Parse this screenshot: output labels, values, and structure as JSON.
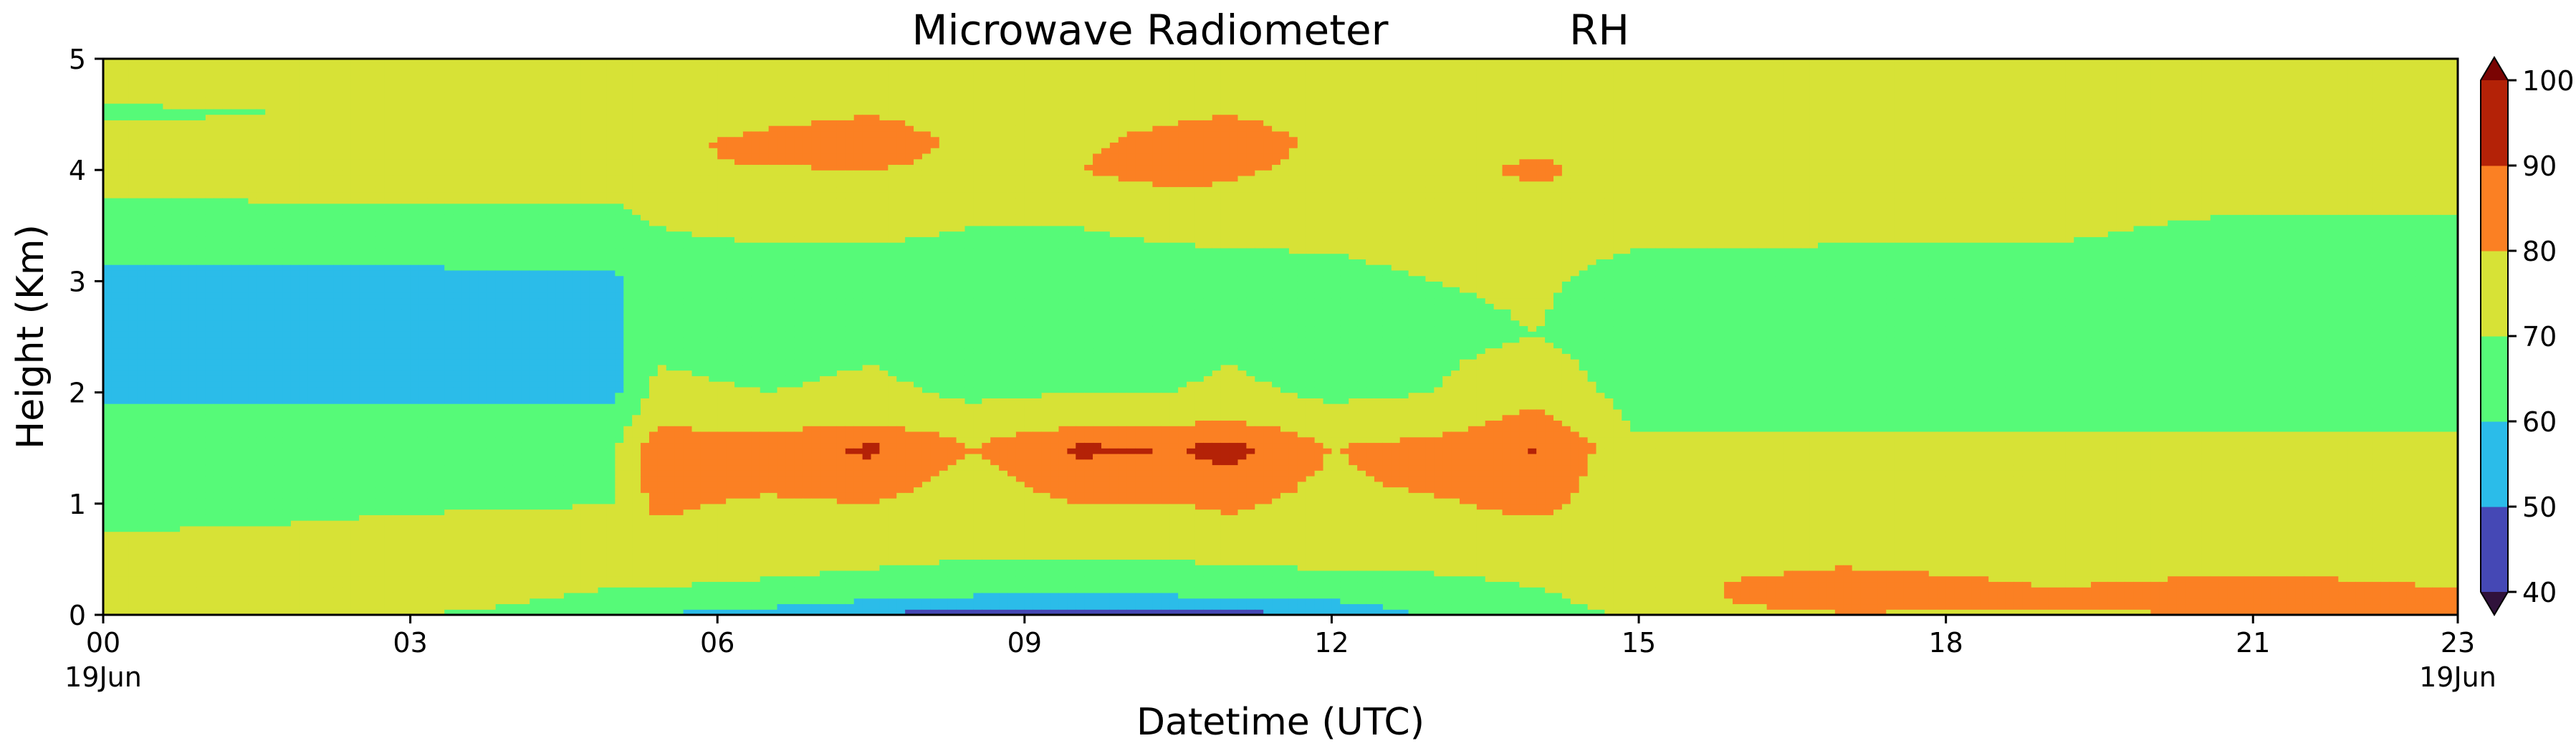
{
  "chart_data": {
    "type": "heatmap",
    "title_left": "Microwave Radiometer",
    "title_right": "RH",
    "xlabel": "Datetime (UTC)",
    "ylabel": "Height (Km)",
    "xlim": [
      0,
      23
    ],
    "ylim": [
      0,
      5
    ],
    "x_ticks": [
      {
        "value": 0,
        "label": "00"
      },
      {
        "value": 3,
        "label": "03"
      },
      {
        "value": 6,
        "label": "06"
      },
      {
        "value": 9,
        "label": "09"
      },
      {
        "value": 12,
        "label": "12"
      },
      {
        "value": 15,
        "label": "15"
      },
      {
        "value": 18,
        "label": "18"
      },
      {
        "value": 21,
        "label": "21"
      },
      {
        "value": 23,
        "label": "23"
      }
    ],
    "x_date_labels": [
      {
        "value": 0,
        "label": "19Jun"
      },
      {
        "value": 23,
        "label": "19Jun"
      }
    ],
    "y_ticks": [
      0,
      1,
      2,
      3,
      4,
      5
    ],
    "colorbar": {
      "ticks": [
        40,
        50,
        60,
        70,
        80,
        90,
        100
      ],
      "levels": [
        {
          "range": [
            40,
            50
          ],
          "color": "#4548b5"
        },
        {
          "range": [
            50,
            60
          ],
          "color": "#2bbce9"
        },
        {
          "range": [
            60,
            70
          ],
          "color": "#56fa78"
        },
        {
          "range": [
            70,
            80
          ],
          "color": "#d7e236"
        },
        {
          "range": [
            80,
            90
          ],
          "color": "#fb8023"
        },
        {
          "range": [
            90,
            100
          ],
          "color": "#b42207"
        }
      ],
      "under_color": "#30123b",
      "over_color": "#7a0403"
    },
    "profile_heights_km": [
      0,
      0.1,
      0.25,
      0.5,
      0.75,
      1.0,
      1.25,
      1.5,
      1.75,
      2.0,
      2.5,
      3.0,
      3.5,
      4.0,
      4.25,
      4.5,
      5.0
    ],
    "profiles": [
      {
        "t": 0,
        "rh": [
          70,
          72,
          75,
          76,
          70,
          66,
          64,
          66,
          64,
          58,
          57,
          57,
          66,
          74,
          74,
          69,
          74
        ]
      },
      {
        "t": 2,
        "rh": [
          72,
          76,
          78,
          76,
          71,
          68,
          66,
          66,
          63,
          58,
          57,
          57,
          67,
          74,
          75,
          70,
          74
        ]
      },
      {
        "t": 4,
        "rh": [
          68,
          70,
          74,
          77,
          74,
          69,
          68,
          68,
          64,
          58,
          57,
          58,
          67,
          74,
          75,
          70,
          74
        ]
      },
      {
        "t": 5,
        "rh": [
          62,
          66,
          70,
          74,
          73,
          70,
          69,
          69,
          64,
          58,
          57,
          58,
          67,
          74,
          76,
          72,
          74
        ]
      },
      {
        "t": 5.4,
        "rh": [
          60,
          65,
          70,
          76,
          78,
          82,
          88,
          86,
          78,
          72,
          68,
          66,
          70,
          80,
          76,
          73,
          75
        ]
      },
      {
        "t": 6.5,
        "rh": [
          55,
          62,
          68,
          74,
          76,
          78,
          84,
          86,
          76,
          70,
          66,
          66,
          72,
          79,
          84,
          76,
          75
        ]
      },
      {
        "t": 7.5,
        "rh": [
          50,
          58,
          66,
          72,
          75,
          80,
          86,
          92,
          78,
          72,
          68,
          66,
          72,
          80,
          88,
          80,
          76
        ]
      },
      {
        "t": 8.5,
        "rh": [
          42,
          56,
          64,
          70,
          72,
          74,
          76,
          80,
          74,
          68,
          66,
          66,
          70,
          77,
          76,
          74,
          76
        ]
      },
      {
        "t": 9.5,
        "rh": [
          38,
          54,
          62,
          70,
          74,
          80,
          86,
          92,
          76,
          70,
          67,
          66,
          70,
          80,
          78,
          76,
          76
        ]
      },
      {
        "t": 10.5,
        "rh": [
          42,
          56,
          64,
          70,
          74,
          80,
          86,
          90,
          78,
          70,
          67,
          66,
          72,
          84,
          84,
          78,
          76
        ]
      },
      {
        "t": 11,
        "rh": [
          46,
          56,
          64,
          72,
          76,
          82,
          88,
          94,
          80,
          72,
          68,
          67,
          72,
          82,
          88,
          80,
          76
        ]
      },
      {
        "t": 12,
        "rh": [
          52,
          58,
          66,
          72,
          74,
          76,
          78,
          80,
          74,
          68,
          66,
          68,
          72,
          76,
          76,
          74,
          75
        ]
      },
      {
        "t": 13,
        "rh": [
          62,
          64,
          68,
          72,
          74,
          78,
          84,
          84,
          74,
          70,
          68,
          70,
          73,
          77,
          76,
          74,
          74
        ]
      },
      {
        "t": 14,
        "rh": [
          64,
          68,
          70,
          73,
          76,
          84,
          88,
          91,
          84,
          76,
          70,
          71,
          74,
          82,
          78,
          75,
          74
        ]
      },
      {
        "t": 15,
        "rh": [
          72,
          73,
          73,
          73,
          72,
          70,
          70,
          72,
          68,
          66,
          66,
          67,
          72,
          76,
          76,
          74,
          74
        ]
      },
      {
        "t": 16,
        "rh": [
          76,
          80,
          82,
          76,
          72,
          70,
          70,
          73,
          68,
          66,
          66,
          67,
          72,
          77,
          76,
          74,
          74
        ]
      },
      {
        "t": 17,
        "rh": [
          79,
          84,
          85,
          78,
          74,
          72,
          72,
          72,
          68,
          66,
          65,
          66,
          72,
          80,
          78,
          74,
          74
        ]
      },
      {
        "t": 19,
        "rh": [
          78,
          82,
          80,
          76,
          74,
          72,
          72,
          72,
          68,
          66,
          65,
          66,
          72,
          78,
          78,
          74,
          74
        ]
      },
      {
        "t": 21,
        "rh": [
          80,
          84,
          82,
          78,
          75,
          72,
          72,
          72,
          68,
          64,
          62,
          62,
          68,
          76,
          76,
          74,
          74
        ]
      },
      {
        "t": 23,
        "rh": [
          82,
          84,
          80,
          76,
          74,
          72,
          72,
          72,
          68,
          62,
          60,
          62,
          68,
          76,
          76,
          74,
          74
        ]
      }
    ]
  }
}
